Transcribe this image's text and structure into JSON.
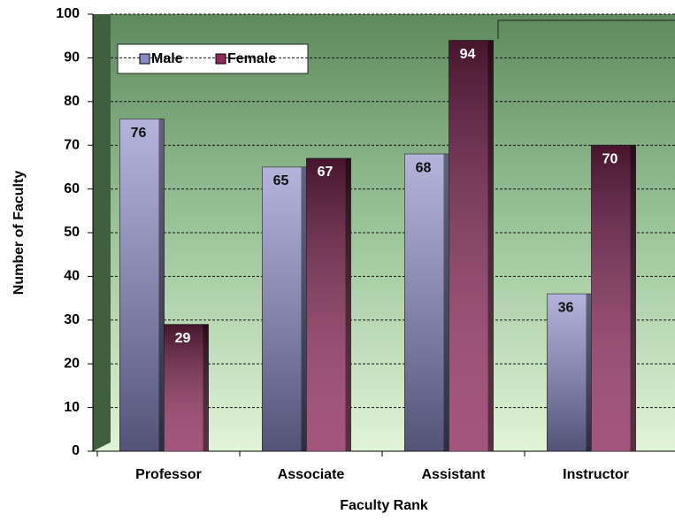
{
  "chart_data": {
    "type": "bar",
    "categories": [
      "Professor",
      "Associate",
      "Assistant",
      "Instructor"
    ],
    "series": [
      {
        "name": "Male",
        "color": "#8a8ac8",
        "values": [
          76,
          65,
          68,
          36
        ]
      },
      {
        "name": "Female",
        "color": "#8e2a5c",
        "values": [
          29,
          67,
          94,
          70
        ]
      }
    ],
    "ylim": [
      0,
      100
    ],
    "yticks": [
      0,
      10,
      20,
      30,
      40,
      50,
      60,
      70,
      80,
      90,
      100
    ],
    "grid": true,
    "legend": "upper left",
    "ylabel": "Number of Faculty",
    "xlabel": "Faculty Rank"
  }
}
